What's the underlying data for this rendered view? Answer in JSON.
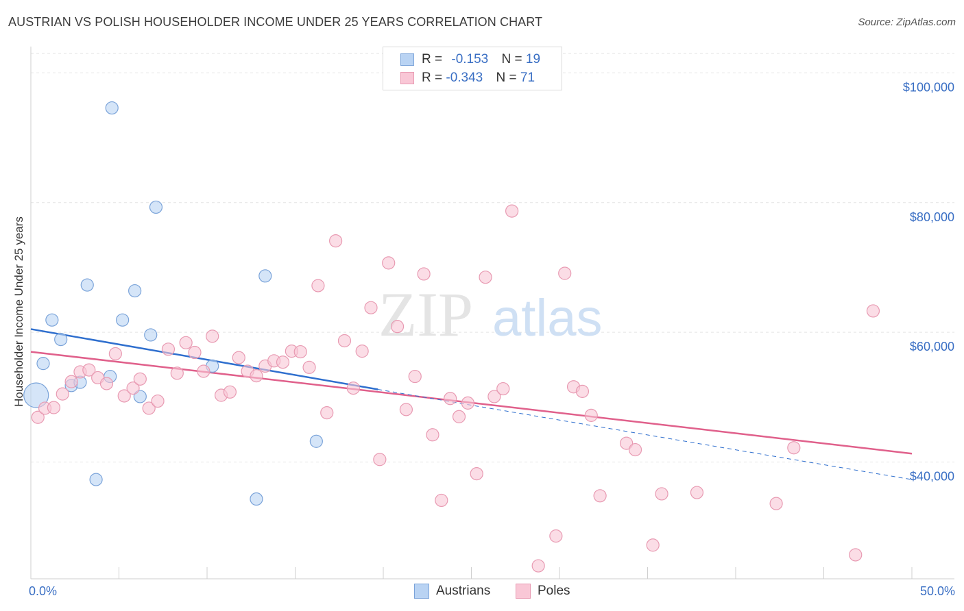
{
  "title": "AUSTRIAN VS POLISH HOUSEHOLDER INCOME UNDER 25 YEARS CORRELATION CHART",
  "source": "Source: ZipAtlas.com",
  "watermark": {
    "zip": "ZIP",
    "atlas": "atlas"
  },
  "legend": {
    "austrians": {
      "r_label": "R = ",
      "r_value": "-0.153",
      "n_label": "N = ",
      "n_value": "19"
    },
    "poles": {
      "r_label": "R = ",
      "r_value": "-0.343",
      "n_label": "N = ",
      "n_value": "71"
    }
  },
  "bottom_legend": {
    "austrians": "Austrians",
    "poles": "Poles"
  },
  "colors": {
    "austrians_fill": "#b9d3f3",
    "austrians_stroke": "#7aa3d9",
    "austrians_line": "#2f6fce",
    "poles_fill": "#f9c7d6",
    "poles_stroke": "#e89ab2",
    "poles_line": "#e0608b",
    "tick_label": "#3a6fc4",
    "grid": "#e3e3e3"
  },
  "chart_data": {
    "type": "scatter",
    "title": "AUSTRIAN VS POLISH HOUSEHOLDER INCOME UNDER 25 YEARS CORRELATION CHART",
    "xlabel": "",
    "ylabel": "Householder Income Under 25 years",
    "xlim": [
      0,
      50
    ],
    "ylim": [
      22000,
      103000
    ],
    "x_tick_labels": [
      {
        "value": 0,
        "label": "0.0%"
      },
      {
        "value": 50,
        "label": "50.0%"
      }
    ],
    "y_ticks": [
      {
        "value": 100000,
        "label": "$100,000"
      },
      {
        "value": 80000,
        "label": "$80,000"
      },
      {
        "value": 60000,
        "label": "$60,000"
      },
      {
        "value": 40000,
        "label": "$40,000"
      }
    ],
    "series": [
      {
        "name": "Austrians",
        "points": [
          {
            "x": 0.3,
            "y": 50300,
            "big": true
          },
          {
            "x": 0.7,
            "y": 55200
          },
          {
            "x": 1.2,
            "y": 61900
          },
          {
            "x": 1.7,
            "y": 58900
          },
          {
            "x": 2.3,
            "y": 51800
          },
          {
            "x": 2.8,
            "y": 52300
          },
          {
            "x": 3.2,
            "y": 67300
          },
          {
            "x": 3.7,
            "y": 37300
          },
          {
            "x": 4.5,
            "y": 53200
          },
          {
            "x": 4.6,
            "y": 94600
          },
          {
            "x": 5.2,
            "y": 61900
          },
          {
            "x": 5.9,
            "y": 66400
          },
          {
            "x": 6.2,
            "y": 50100
          },
          {
            "x": 6.8,
            "y": 59600
          },
          {
            "x": 7.1,
            "y": 79300
          },
          {
            "x": 10.3,
            "y": 54800
          },
          {
            "x": 12.8,
            "y": 34300
          },
          {
            "x": 13.3,
            "y": 68700
          },
          {
            "x": 16.2,
            "y": 43200
          }
        ],
        "trend": {
          "x0": 0,
          "y0": 60500,
          "x1": 19.7,
          "y1": 51200,
          "dash_to_x": 50,
          "dash_to_y": 37300
        }
      },
      {
        "name": "Poles",
        "points": [
          {
            "x": 0.4,
            "y": 46900
          },
          {
            "x": 0.8,
            "y": 48300
          },
          {
            "x": 1.3,
            "y": 48400
          },
          {
            "x": 1.8,
            "y": 50500
          },
          {
            "x": 2.3,
            "y": 52400
          },
          {
            "x": 2.8,
            "y": 53900
          },
          {
            "x": 3.3,
            "y": 54200
          },
          {
            "x": 3.8,
            "y": 53000
          },
          {
            "x": 4.3,
            "y": 52100
          },
          {
            "x": 4.8,
            "y": 56700
          },
          {
            "x": 5.3,
            "y": 50200
          },
          {
            "x": 5.8,
            "y": 51400
          },
          {
            "x": 6.2,
            "y": 52800
          },
          {
            "x": 6.7,
            "y": 48300
          },
          {
            "x": 7.2,
            "y": 49400
          },
          {
            "x": 7.8,
            "y": 57400
          },
          {
            "x": 8.3,
            "y": 53700
          },
          {
            "x": 8.8,
            "y": 58400
          },
          {
            "x": 9.3,
            "y": 56900
          },
          {
            "x": 9.8,
            "y": 54000
          },
          {
            "x": 10.3,
            "y": 59400
          },
          {
            "x": 10.8,
            "y": 50300
          },
          {
            "x": 11.3,
            "y": 50800
          },
          {
            "x": 11.8,
            "y": 56100
          },
          {
            "x": 12.3,
            "y": 54000
          },
          {
            "x": 12.8,
            "y": 53300
          },
          {
            "x": 13.3,
            "y": 54800
          },
          {
            "x": 13.8,
            "y": 55600
          },
          {
            "x": 14.3,
            "y": 55400
          },
          {
            "x": 14.8,
            "y": 57100
          },
          {
            "x": 15.3,
            "y": 57000
          },
          {
            "x": 15.8,
            "y": 54600
          },
          {
            "x": 16.3,
            "y": 67200
          },
          {
            "x": 16.8,
            "y": 47600
          },
          {
            "x": 17.3,
            "y": 74100
          },
          {
            "x": 17.8,
            "y": 58700
          },
          {
            "x": 18.3,
            "y": 51400
          },
          {
            "x": 18.8,
            "y": 57100
          },
          {
            "x": 19.3,
            "y": 63800
          },
          {
            "x": 19.8,
            "y": 40400
          },
          {
            "x": 20.3,
            "y": 70700
          },
          {
            "x": 20.8,
            "y": 60900
          },
          {
            "x": 21.3,
            "y": 48100
          },
          {
            "x": 21.8,
            "y": 53200
          },
          {
            "x": 22.3,
            "y": 69000
          },
          {
            "x": 22.8,
            "y": 44200
          },
          {
            "x": 23.3,
            "y": 34100
          },
          {
            "x": 23.8,
            "y": 49800
          },
          {
            "x": 24.3,
            "y": 47000
          },
          {
            "x": 24.8,
            "y": 49100
          },
          {
            "x": 25.3,
            "y": 38200
          },
          {
            "x": 25.8,
            "y": 68500
          },
          {
            "x": 26.3,
            "y": 50100
          },
          {
            "x": 26.8,
            "y": 51300
          },
          {
            "x": 27.3,
            "y": 78700
          },
          {
            "x": 28.8,
            "y": 24000
          },
          {
            "x": 29.8,
            "y": 28600
          },
          {
            "x": 30.3,
            "y": 69100
          },
          {
            "x": 30.8,
            "y": 51600
          },
          {
            "x": 31.3,
            "y": 50900
          },
          {
            "x": 31.8,
            "y": 47200
          },
          {
            "x": 32.3,
            "y": 34800
          },
          {
            "x": 33.8,
            "y": 42900
          },
          {
            "x": 34.3,
            "y": 41900
          },
          {
            "x": 35.3,
            "y": 27200
          },
          {
            "x": 35.8,
            "y": 35100
          },
          {
            "x": 37.8,
            "y": 35300
          },
          {
            "x": 42.3,
            "y": 33600
          },
          {
            "x": 43.3,
            "y": 42200
          },
          {
            "x": 46.8,
            "y": 25700
          },
          {
            "x": 47.8,
            "y": 63300
          }
        ],
        "trend": {
          "x0": 0,
          "y0": 57000,
          "x1": 50,
          "y1": 41300
        }
      }
    ]
  }
}
